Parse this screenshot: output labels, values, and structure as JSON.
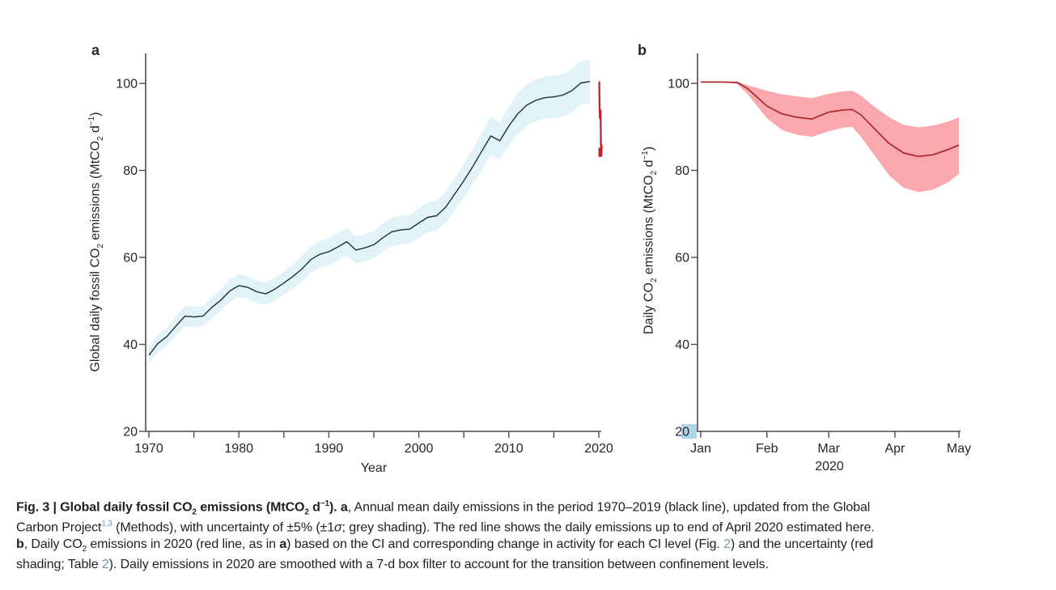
{
  "figure": {
    "panel_a": {
      "label": "a",
      "xlabel": "Year",
      "ylabel_segments": [
        {
          "t": "Global daily fossil CO"
        },
        {
          "t": "2",
          "sub": true
        },
        {
          "t": " emissions (MtCO"
        },
        {
          "t": "2",
          "sub": true
        },
        {
          "t": " d"
        },
        {
          "t": "−1",
          "sup": true
        },
        {
          "t": ")"
        }
      ]
    },
    "panel_b": {
      "label": "b",
      "xlabel": "2020",
      "ylabel_segments": [
        {
          "t": "Daily CO"
        },
        {
          "t": "2",
          "sub": true
        },
        {
          "t": " emissions (MtCO"
        },
        {
          "t": "2",
          "sub": true
        },
        {
          "t": " d"
        },
        {
          "t": "−1",
          "sup": true
        },
        {
          "t": ")"
        }
      ],
      "tick_highlight": {
        "value": "20",
        "color": "#aed4e8"
      }
    }
  },
  "chart_data": [
    {
      "type": "line",
      "panel": "a",
      "title": "",
      "xlabel": "Year",
      "ylabel": "Global daily fossil CO2 emissions (MtCO2 d-1)",
      "xlim": [
        1970,
        2020
      ],
      "ylim": [
        20,
        107
      ],
      "grid": false,
      "legend": "none",
      "x": [
        1970,
        1971,
        1972,
        1973,
        1974,
        1975,
        1976,
        1977,
        1978,
        1979,
        1980,
        1981,
        1982,
        1983,
        1984,
        1985,
        1986,
        1987,
        1988,
        1989,
        1990,
        1991,
        1992,
        1993,
        1994,
        1995,
        1996,
        1997,
        1998,
        1999,
        2000,
        2001,
        2002,
        2003,
        2004,
        2005,
        2006,
        2007,
        2008,
        2009,
        2010,
        2011,
        2012,
        2013,
        2014,
        2015,
        2016,
        2017,
        2018,
        2019
      ],
      "series": [
        {
          "name": "Annual mean daily emissions (black line)",
          "values": [
            37.5,
            40.2,
            41.8,
            44.2,
            46.5,
            46.3,
            46.5,
            48.5,
            50.2,
            52.3,
            53.5,
            53.1,
            52.1,
            51.6,
            52.7,
            54.1,
            55.6,
            57.3,
            59.5,
            60.7,
            61.3,
            62.4,
            63.6,
            61.7,
            62.2,
            62.9,
            64.5,
            65.9,
            66.3,
            66.5,
            67.9,
            69.2,
            69.6,
            71.6,
            74.6,
            77.6,
            80.9,
            84.4,
            87.9,
            86.8,
            90.2,
            93.0,
            95.0,
            96.1,
            96.7,
            96.9,
            97.3,
            98.3,
            100.1,
            100.4
          ]
        }
      ],
      "uncertainty_pct": 5,
      "y_ticks": [
        20,
        40,
        60,
        80,
        100
      ],
      "x_ticks_labeled": [
        1970,
        1980,
        1990,
        2000,
        2010,
        2020
      ],
      "x_tick_step_minor": 5,
      "line_color": "#202e36",
      "band_color": "#e2f3f8",
      "red_line_color": "#c2232a",
      "red_line_note": "daily emissions up to end of April 2020"
    },
    {
      "type": "line",
      "panel": "b",
      "title": "",
      "xlabel": "2020",
      "ylabel": "Daily CO2 emissions (MtCO2 d-1)",
      "x_months": [
        "Jan",
        "Feb",
        "Mar",
        "Apr",
        "May"
      ],
      "month_tick_days": [
        0,
        31,
        60,
        91,
        121
      ],
      "ylim": [
        20,
        107
      ],
      "y_ticks": [
        20,
        40,
        60,
        80,
        100
      ],
      "x_day": [
        0,
        10,
        17,
        22,
        31,
        38,
        45,
        52,
        60,
        67,
        71,
        75,
        81,
        88,
        95,
        102,
        109,
        116,
        121
      ],
      "mean": [
        100.3,
        100.3,
        100.2,
        98.8,
        94.8,
        93.0,
        92.2,
        91.8,
        93.4,
        93.9,
        94.0,
        92.8,
        89.8,
        86.3,
        84.0,
        83.2,
        83.6,
        84.8,
        85.8
      ],
      "lower": [
        100.3,
        100.3,
        99.9,
        97.5,
        92.0,
        89.3,
        88.2,
        87.7,
        89.0,
        89.8,
        90.0,
        87.8,
        83.8,
        79.0,
        76.0,
        75.0,
        75.6,
        77.3,
        79.2
      ],
      "upper": [
        100.3,
        100.3,
        100.4,
        99.6,
        98.3,
        97.5,
        97.0,
        96.6,
        97.6,
        98.2,
        98.3,
        97.2,
        94.8,
        92.3,
        90.5,
        89.9,
        90.3,
        91.2,
        92.2
      ],
      "line_color": "#a5292e",
      "band_color": "#f9a9ad"
    }
  ],
  "caption": {
    "lines": [
      [
        {
          "t": "Fig. 3 | Global daily fossil CO",
          "b": true
        },
        {
          "t": "2",
          "b": true,
          "sub": true
        },
        {
          "t": " emissions (MtCO",
          "b": true
        },
        {
          "t": "2",
          "b": true,
          "sub": true
        },
        {
          "t": " d",
          "b": true
        },
        {
          "t": "−1",
          "b": true,
          "sup": true
        },
        {
          "t": "). ",
          "b": true
        },
        {
          "t": "a",
          "b": true
        },
        {
          "t": ", Annual mean daily emissions in the period 1970–2019 (black line), updated from the Global"
        }
      ],
      [
        {
          "t": "Carbon Project"
        },
        {
          "t": "1,3",
          "sup": true,
          "link": true
        },
        {
          "t": " (Methods), with uncertainty of ±5% (±1"
        },
        {
          "t": "σ",
          "i": true
        },
        {
          "t": "; grey shading). The red line shows the daily emissions up to end of April 2020 estimated here."
        }
      ],
      [
        {
          "t": "b",
          "b": true
        },
        {
          "t": ", Daily CO"
        },
        {
          "t": "2",
          "sub": true
        },
        {
          "t": " emissions in 2020 (red line, as in "
        },
        {
          "t": "a",
          "b": true
        },
        {
          "t": ") based on the CI and corresponding change in activity for each CI level (Fig. "
        },
        {
          "t": "2",
          "link": true
        },
        {
          "t": ") and the uncertainty (red"
        }
      ],
      [
        {
          "t": "shading; Table "
        },
        {
          "t": "2",
          "link": true
        },
        {
          "t": "). Daily emissions in 2020 are smoothed with a 7-d box filter to account for the transition between confinement levels."
        }
      ]
    ]
  }
}
